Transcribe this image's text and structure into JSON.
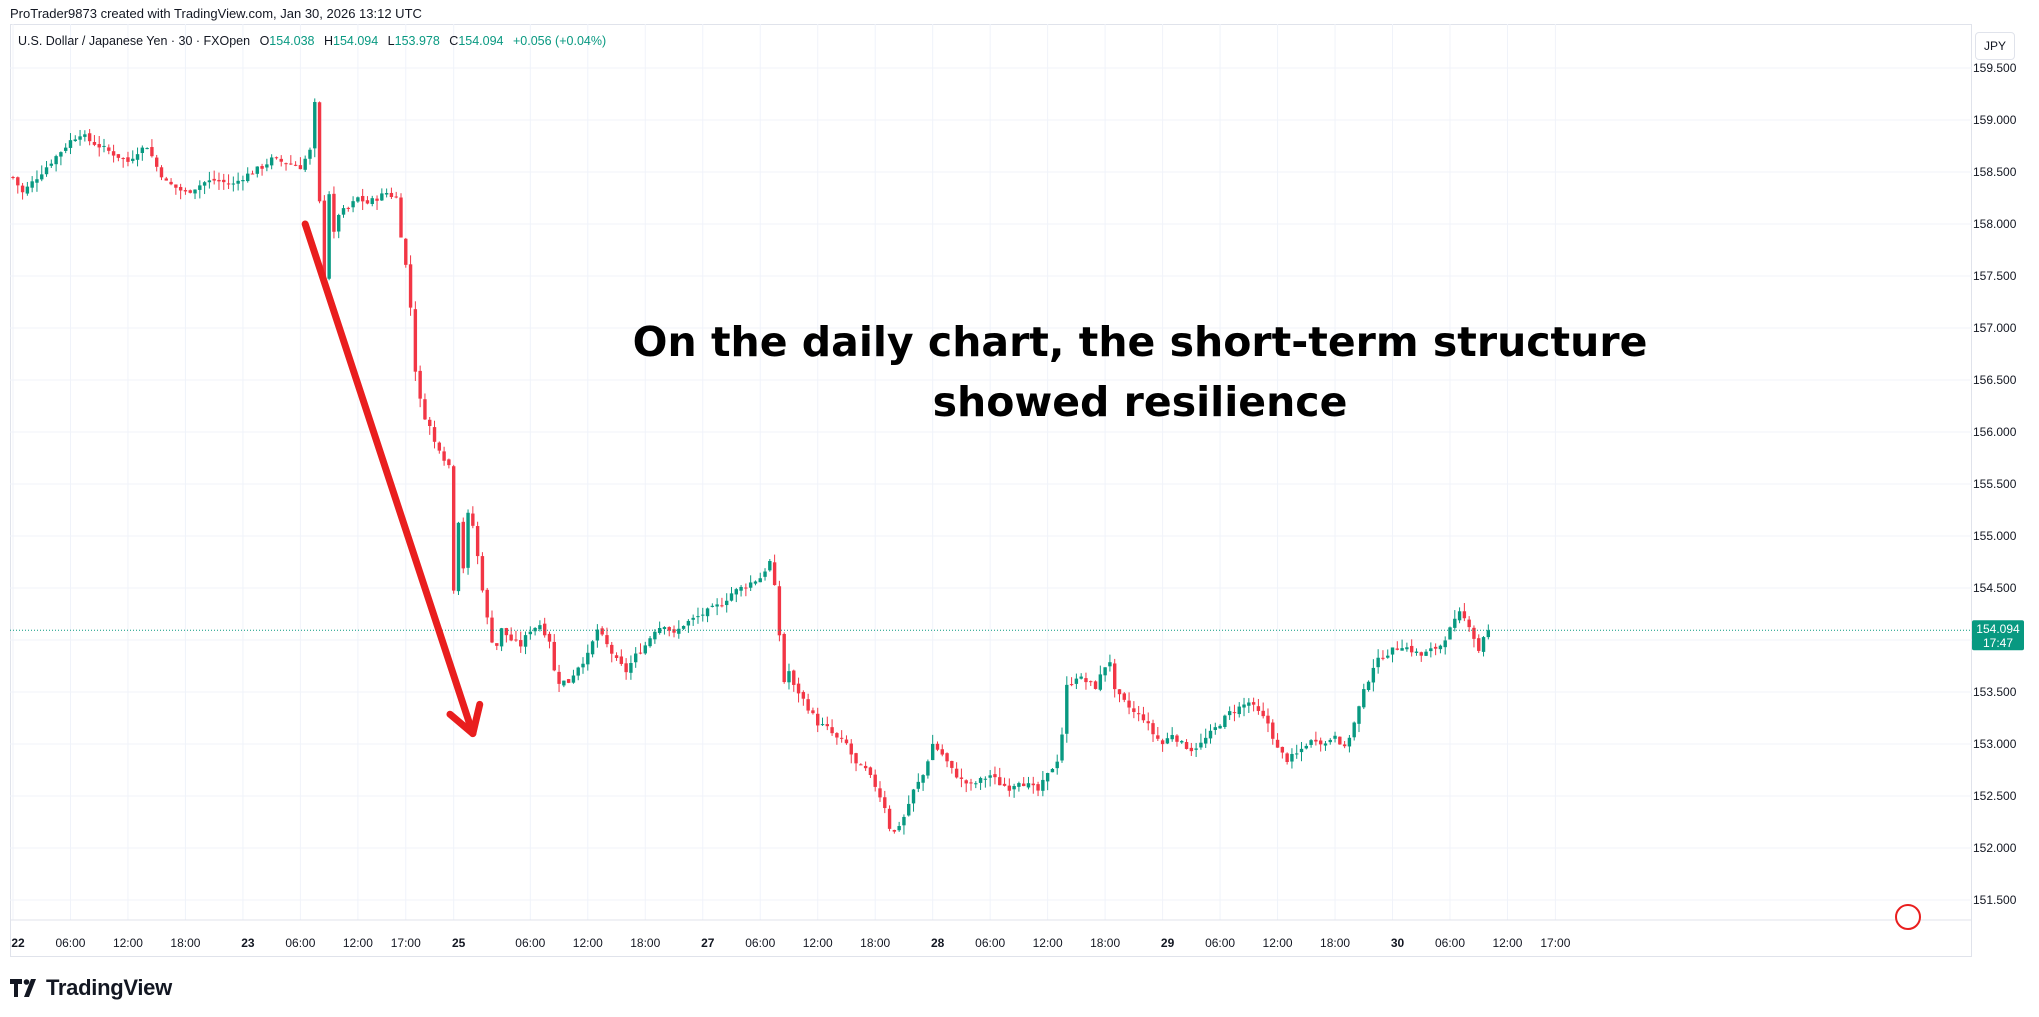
{
  "header": {
    "attribution": "ProTrader9873 created with TradingView.com, Jan 30, 2026 13:12 UTC"
  },
  "legend": {
    "symbol": "U.S. Dollar / Japanese Yen · 30 · FXOpen",
    "open_label": "O",
    "open": "154.038",
    "high_label": "H",
    "high": "154.094",
    "low_label": "L",
    "low": "153.978",
    "close_label": "C",
    "close": "154.094",
    "change": "+0.056 (+0.04%)"
  },
  "currency_button": "JPY",
  "annotation": {
    "line1": "On the daily chart, the short-term structure",
    "line2": "showed resilience"
  },
  "price_tag": {
    "price": "154.094",
    "countdown": "17:47"
  },
  "brand": "TradingView",
  "colors": {
    "up": "#089981",
    "down": "#f23645",
    "arrow": "#e91e1e",
    "price_line": "#089981",
    "grid": "#f0f3fa"
  },
  "chart_data": {
    "type": "candlestick",
    "symbol": "USDJPY",
    "interval": "30",
    "y_axis_ticks": [
      159.5,
      159.0,
      158.5,
      158.0,
      157.5,
      157.0,
      156.5,
      156.0,
      155.5,
      155.0,
      154.5,
      154.0,
      153.5,
      153.0,
      152.5,
      152.0,
      151.5
    ],
    "y_axis_labels": [
      "159.500",
      "159.000",
      "158.500",
      "158.000",
      "157.500",
      "157.000",
      "156.500",
      "156.000",
      "155.500",
      "155.000",
      "154.500",
      "154.000",
      "153.500",
      "153.000",
      "152.500",
      "152.000",
      "151.500"
    ],
    "ylim": [
      151.35,
      160.03
    ],
    "x_axis_labels": [
      {
        "t": 0,
        "label": "22"
      },
      {
        "t": 12,
        "label": "06:00"
      },
      {
        "t": 24,
        "label": "12:00"
      },
      {
        "t": 36,
        "label": "18:00"
      },
      {
        "t": 48,
        "label": "23"
      },
      {
        "t": 60,
        "label": "06:00"
      },
      {
        "t": 72,
        "label": "12:00"
      },
      {
        "t": 82,
        "label": "17:00"
      },
      {
        "t": 92,
        "label": "25"
      },
      {
        "t": 108,
        "label": "06:00"
      },
      {
        "t": 120,
        "label": "12:00"
      },
      {
        "t": 132,
        "label": "18:00"
      },
      {
        "t": 144,
        "label": "27"
      },
      {
        "t": 156,
        "label": "06:00"
      },
      {
        "t": 168,
        "label": "12:00"
      },
      {
        "t": 180,
        "label": "18:00"
      },
      {
        "t": 192,
        "label": "28"
      },
      {
        "t": 204,
        "label": "06:00"
      },
      {
        "t": 216,
        "label": "12:00"
      },
      {
        "t": 228,
        "label": "18:00"
      },
      {
        "t": 240,
        "label": "29"
      },
      {
        "t": 252,
        "label": "06:00"
      },
      {
        "t": 264,
        "label": "12:00"
      },
      {
        "t": 276,
        "label": "18:00"
      },
      {
        "t": 288,
        "label": "30"
      },
      {
        "t": 300,
        "label": "06:00"
      },
      {
        "t": 312,
        "label": "12:00"
      },
      {
        "t": 322,
        "label": "17:00"
      }
    ],
    "last_price": 154.094,
    "close_path": [
      [
        0,
        158.45
      ],
      [
        2,
        158.3
      ],
      [
        4,
        158.4
      ],
      [
        6,
        158.5
      ],
      [
        8,
        158.6
      ],
      [
        10,
        158.7
      ],
      [
        12,
        158.8
      ],
      [
        14,
        158.87
      ],
      [
        16,
        158.8
      ],
      [
        18,
        158.75
      ],
      [
        20,
        158.7
      ],
      [
        22,
        158.65
      ],
      [
        24,
        158.6
      ],
      [
        26,
        158.7
      ],
      [
        28,
        158.75
      ],
      [
        30,
        158.55
      ],
      [
        32,
        158.4
      ],
      [
        34,
        158.35
      ],
      [
        36,
        158.3
      ],
      [
        38,
        158.35
      ],
      [
        40,
        158.4
      ],
      [
        42,
        158.42
      ],
      [
        44,
        158.4
      ],
      [
        46,
        158.38
      ],
      [
        48,
        158.45
      ],
      [
        50,
        158.5
      ],
      [
        52,
        158.55
      ],
      [
        54,
        158.62
      ],
      [
        56,
        158.6
      ],
      [
        58,
        158.58
      ],
      [
        60,
        158.55
      ],
      [
        62,
        158.7
      ],
      [
        63,
        159.15
      ],
      [
        64,
        158.2
      ],
      [
        65,
        157.5
      ],
      [
        66,
        158.3
      ],
      [
        67,
        157.9
      ],
      [
        68,
        158.1
      ],
      [
        70,
        158.15
      ],
      [
        72,
        158.25
      ],
      [
        74,
        158.2
      ],
      [
        76,
        158.25
      ],
      [
        78,
        158.3
      ],
      [
        80,
        158.25
      ],
      [
        81,
        157.9
      ],
      [
        82,
        157.6
      ],
      [
        83,
        157.2
      ],
      [
        84,
        156.6
      ],
      [
        85,
        156.3
      ],
      [
        86,
        156.15
      ],
      [
        87,
        156.05
      ],
      [
        88,
        155.9
      ],
      [
        89,
        155.85
      ],
      [
        90,
        155.75
      ],
      [
        91,
        155.68
      ],
      [
        92,
        154.5
      ],
      [
        93,
        155.15
      ],
      [
        94,
        154.7
      ],
      [
        95,
        155.2
      ],
      [
        96,
        155.1
      ],
      [
        97,
        154.8
      ],
      [
        98,
        154.5
      ],
      [
        99,
        154.2
      ],
      [
        100,
        154.0
      ],
      [
        101,
        153.95
      ],
      [
        102,
        154.1
      ],
      [
        104,
        154.0
      ],
      [
        106,
        153.95
      ],
      [
        108,
        154.1
      ],
      [
        110,
        154.15
      ],
      [
        112,
        154.0
      ],
      [
        113,
        153.7
      ],
      [
        114,
        153.6
      ],
      [
        116,
        153.6
      ],
      [
        118,
        153.75
      ],
      [
        120,
        153.85
      ],
      [
        122,
        154.1
      ],
      [
        124,
        153.95
      ],
      [
        126,
        153.8
      ],
      [
        128,
        153.7
      ],
      [
        130,
        153.85
      ],
      [
        132,
        153.95
      ],
      [
        134,
        154.1
      ],
      [
        136,
        154.15
      ],
      [
        138,
        154.05
      ],
      [
        140,
        154.15
      ],
      [
        142,
        154.2
      ],
      [
        144,
        154.25
      ],
      [
        146,
        154.3
      ],
      [
        148,
        154.35
      ],
      [
        150,
        154.45
      ],
      [
        152,
        154.5
      ],
      [
        154,
        154.55
      ],
      [
        156,
        154.6
      ],
      [
        158,
        154.75
      ],
      [
        159,
        154.5
      ],
      [
        160,
        154.05
      ],
      [
        161,
        153.6
      ],
      [
        162,
        153.7
      ],
      [
        163,
        153.55
      ],
      [
        164,
        153.5
      ],
      [
        166,
        153.35
      ],
      [
        168,
        153.2
      ],
      [
        170,
        153.15
      ],
      [
        172,
        153.05
      ],
      [
        174,
        153.0
      ],
      [
        176,
        152.8
      ],
      [
        178,
        152.75
      ],
      [
        180,
        152.6
      ],
      [
        182,
        152.4
      ],
      [
        183,
        152.2
      ],
      [
        184,
        152.15
      ],
      [
        186,
        152.3
      ],
      [
        188,
        152.55
      ],
      [
        190,
        152.7
      ],
      [
        192,
        153.0
      ],
      [
        194,
        152.9
      ],
      [
        196,
        152.75
      ],
      [
        198,
        152.65
      ],
      [
        200,
        152.6
      ],
      [
        202,
        152.65
      ],
      [
        204,
        152.7
      ],
      [
        206,
        152.62
      ],
      [
        208,
        152.58
      ],
      [
        210,
        152.65
      ],
      [
        212,
        152.6
      ],
      [
        214,
        152.55
      ],
      [
        216,
        152.7
      ],
      [
        218,
        152.85
      ],
      [
        219,
        153.1
      ],
      [
        220,
        153.55
      ],
      [
        222,
        153.65
      ],
      [
        224,
        153.6
      ],
      [
        226,
        153.55
      ],
      [
        228,
        153.75
      ],
      [
        229,
        153.8
      ],
      [
        230,
        153.5
      ],
      [
        232,
        153.4
      ],
      [
        234,
        153.3
      ],
      [
        236,
        153.25
      ],
      [
        238,
        153.1
      ],
      [
        240,
        153.0
      ],
      [
        242,
        153.1
      ],
      [
        244,
        153.0
      ],
      [
        246,
        152.95
      ],
      [
        248,
        153.0
      ],
      [
        250,
        153.1
      ],
      [
        252,
        153.2
      ],
      [
        254,
        153.3
      ],
      [
        256,
        153.35
      ],
      [
        258,
        153.4
      ],
      [
        260,
        153.3
      ],
      [
        262,
        153.2
      ],
      [
        264,
        152.95
      ],
      [
        266,
        152.85
      ],
      [
        268,
        152.9
      ],
      [
        270,
        153.0
      ],
      [
        272,
        153.05
      ],
      [
        274,
        153.0
      ],
      [
        276,
        153.1
      ],
      [
        278,
        152.95
      ],
      [
        280,
        153.2
      ],
      [
        282,
        153.5
      ],
      [
        284,
        153.75
      ],
      [
        286,
        153.85
      ],
      [
        288,
        153.9
      ],
      [
        290,
        153.95
      ],
      [
        292,
        153.9
      ],
      [
        294,
        153.85
      ],
      [
        296,
        153.9
      ],
      [
        298,
        153.95
      ],
      [
        300,
        154.1
      ],
      [
        302,
        154.25
      ],
      [
        304,
        154.15
      ],
      [
        306,
        153.9
      ],
      [
        307,
        154.038
      ],
      [
        308,
        154.094
      ]
    ],
    "arrow": {
      "from": {
        "t": 61,
        "price": 158.0
      },
      "to": {
        "t": 96,
        "price": 153.1
      }
    }
  }
}
